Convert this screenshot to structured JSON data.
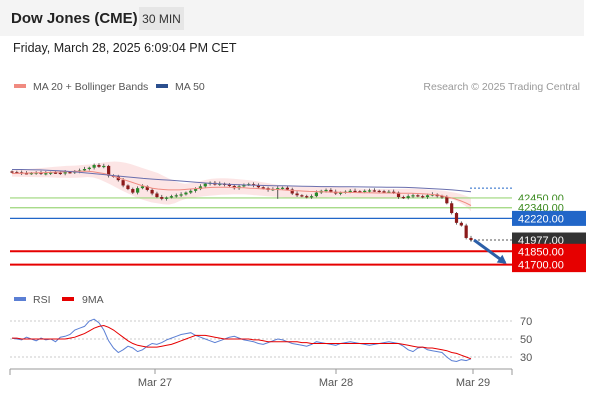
{
  "header": {
    "title": "Dow Jones (CME)",
    "timeframe": "30 MIN"
  },
  "datetime": "Friday, March 28, 2025 6:09:04 PM CET",
  "legend": {
    "bb_label": "MA 20 + Bollinger Bands",
    "ma50_label": "MA 50",
    "credit": "Research © 2025 Trading Central"
  },
  "rsi_legend": {
    "rsi_label": "RSI",
    "ma9_label": "9MA"
  },
  "colors": {
    "bull": "#2a8a2a",
    "bear": "#8b1a1a",
    "bb_fill": "#fbdcdc",
    "ma20": "#f08a80",
    "ma50": "#6a6fae",
    "support": "#e60000",
    "pivot": "#2166c8",
    "resistance": "#9cd67a",
    "last": "#333333",
    "rsi": "#5b7fd4",
    "rsi_ma": "#e60000"
  },
  "chart_data": [
    {
      "type": "candlestick",
      "title": "Dow Jones (CME)",
      "timeframe": "30 MIN",
      "x_labels": [
        "Mar 27",
        "Mar 28",
        "Mar 29"
      ],
      "ylim": [
        41600,
        42850
      ],
      "close_series": [
        42740,
        42738,
        42728,
        42725,
        42730,
        42735,
        42720,
        42728,
        42735,
        42732,
        42725,
        42740,
        42735,
        42748,
        42760,
        42775,
        42790,
        42820,
        42800,
        42810,
        42700,
        42690,
        42650,
        42590,
        42550,
        42510,
        42560,
        42580,
        42540,
        42500,
        42460,
        42440,
        42455,
        42470,
        42480,
        42490,
        42510,
        42530,
        42550,
        42580,
        42610,
        42620,
        42600,
        42610,
        42600,
        42585,
        42560,
        42580,
        42600,
        42605,
        42590,
        42570,
        42560,
        42540,
        42550,
        42560,
        42565,
        42545,
        42500,
        42480,
        42470,
        42460,
        42470,
        42510,
        42530,
        42540,
        42520,
        42500,
        42510,
        42520,
        42530,
        42525,
        42520,
        42530,
        42535,
        42530,
        42525,
        42520,
        42520,
        42510,
        42460,
        42450,
        42470,
        42480,
        42470,
        42460,
        42480,
        42490,
        42470,
        42460,
        42390,
        42280,
        42170,
        42140,
        42000,
        41977
      ],
      "ma20": [
        42725,
        42726,
        42728,
        42730,
        42732,
        42734,
        42735,
        42737,
        42740,
        42742,
        42745,
        42748,
        42750,
        42751,
        42750,
        42745,
        42735,
        42725,
        42710,
        42690,
        42670,
        42650,
        42630,
        42610,
        42590,
        42575,
        42560,
        42550,
        42545,
        42540,
        42540,
        42540,
        42545,
        42550,
        42555,
        42560,
        42565,
        42568,
        42570,
        42570,
        42570,
        42568,
        42566,
        42564,
        42560,
        42557,
        42554,
        42551,
        42548,
        42545,
        42541,
        42537,
        42533,
        42530,
        42527,
        42524,
        42522,
        42520,
        42518,
        42516,
        42515,
        42513,
        42512,
        42511,
        42510,
        42509,
        42508,
        42507,
        42506,
        42505,
        42505,
        42504,
        42503,
        42502,
        42502,
        42500,
        42497,
        42493,
        42488,
        42482,
        42470,
        42455,
        42440,
        42420,
        42395,
        42365
      ],
      "bb_upper": [
        42760,
        42765,
        42770,
        42775,
        42780,
        42785,
        42790,
        42795,
        42800,
        42805,
        42810,
        42812,
        42815,
        42820,
        42825,
        42830,
        42840,
        42850,
        42855,
        42860,
        42855,
        42845,
        42830,
        42810,
        42790,
        42770,
        42750,
        42730,
        42700,
        42670,
        42640,
        42620,
        42610,
        42615,
        42625,
        42640,
        42655,
        42665,
        42670,
        42672,
        42670,
        42665,
        42660,
        42655,
        42650,
        42640,
        42630,
        42620,
        42610,
        42600,
        42590,
        42585,
        42580,
        42578,
        42575,
        42575,
        42578,
        42580,
        42580,
        42578,
        42575,
        42570,
        42568,
        42565,
        42560,
        42555,
        42553,
        42550,
        42550,
        42550,
        42550,
        42550,
        42552,
        42555,
        42555,
        42555,
        42550,
        42545,
        42540,
        42535,
        42530,
        42520,
        42510,
        42495,
        42475,
        42450
      ],
      "bb_lower": [
        42690,
        42688,
        42686,
        42685,
        42684,
        42683,
        42682,
        42680,
        42678,
        42676,
        42675,
        42677,
        42680,
        42685,
        42680,
        42660,
        42630,
        42600,
        42565,
        42530,
        42500,
        42470,
        42440,
        42420,
        42400,
        42390,
        42380,
        42375,
        42390,
        42420,
        42440,
        42450,
        42460,
        42470,
        42475,
        42480,
        42485,
        42488,
        42490,
        42490,
        42490,
        42485,
        42480,
        42475,
        42470,
        42465,
        42460,
        42455,
        42450,
        42450,
        42450,
        42450,
        42450,
        42450,
        42455,
        42460,
        42465,
        42465,
        42460,
        42455,
        42450,
        42445,
        42440,
        42440,
        42440,
        42440,
        42440,
        42445,
        42450,
        42455,
        42460,
        42460,
        42455,
        42450,
        42445,
        42440,
        42430,
        42400,
        42360,
        42300
      ],
      "ma50": [
        42770,
        42770,
        42768,
        42765,
        42760,
        42755,
        42748,
        42740,
        42730,
        42720,
        42710,
        42700,
        42690,
        42680,
        42670,
        42662,
        42655,
        42648,
        42640,
        42632,
        42624,
        42616,
        42610,
        42605,
        42600,
        42596,
        42592,
        42590,
        42588,
        42586,
        42584,
        42582,
        42580,
        42578,
        42577,
        42576,
        42575,
        42574,
        42573,
        42572,
        42571,
        42570,
        42568,
        42565,
        42560,
        42554,
        42547,
        42540,
        42530,
        42520
      ],
      "levels": [
        {
          "label": "42450.00",
          "role": "resistance",
          "value": 42450
        },
        {
          "label": "42340.00",
          "role": "resistance",
          "value": 42340
        },
        {
          "label": "42220.00",
          "role": "pivot",
          "value": 42220
        },
        {
          "label": "41977.00",
          "role": "last",
          "value": 41977
        },
        {
          "label": "41850.00",
          "role": "support",
          "value": 41850
        },
        {
          "label": "41700.00",
          "role": "support",
          "value": 41700
        }
      ],
      "projection_arrow": {
        "from": 41977,
        "to": 41700,
        "direction": "down"
      }
    },
    {
      "type": "line",
      "title": "RSI",
      "y_ticks": [
        30,
        50,
        70
      ],
      "ylim": [
        20,
        80
      ],
      "series": [
        {
          "name": "RSI",
          "values": [
            51,
            50,
            49,
            52,
            50,
            48,
            51,
            49,
            50,
            47,
            52,
            53,
            55,
            60,
            62,
            64,
            70,
            72,
            68,
            60,
            48,
            40,
            35,
            38,
            42,
            40,
            36,
            38,
            42,
            45,
            44,
            46,
            49,
            51,
            53,
            55,
            56,
            57,
            54,
            52,
            50,
            48,
            46,
            48,
            50,
            52,
            53,
            51,
            49,
            48,
            47,
            45,
            44,
            46,
            48,
            50,
            49,
            47,
            45,
            44,
            43,
            42,
            44,
            47,
            46,
            45,
            44,
            43,
            45,
            46,
            47,
            46,
            45,
            44,
            43,
            44,
            45,
            46,
            47,
            46,
            45,
            42,
            38,
            36,
            40,
            41,
            38,
            37,
            36,
            35,
            30,
            26,
            25,
            27,
            26,
            28
          ]
        },
        {
          "name": "9MA",
          "values": [
            51,
            51,
            50,
            50,
            50,
            50,
            50,
            50,
            50,
            50,
            50,
            50,
            51,
            52,
            54,
            56,
            59,
            62,
            64,
            65,
            63,
            60,
            56,
            52,
            48,
            45,
            43,
            42,
            41,
            41,
            41,
            42,
            43,
            44,
            46,
            48,
            50,
            52,
            54,
            54,
            54,
            53,
            52,
            51,
            50,
            50,
            50,
            50,
            50,
            50,
            49,
            49,
            48,
            47,
            47,
            47,
            47,
            47,
            47,
            47,
            46,
            46,
            45,
            45,
            45,
            45,
            45,
            45,
            45,
            45,
            45,
            45,
            45,
            45,
            45,
            45,
            45,
            45,
            45,
            45,
            45,
            44,
            43,
            42,
            41,
            41,
            40,
            40,
            39,
            38,
            37,
            35,
            34,
            32,
            30,
            28
          ]
        }
      ]
    }
  ]
}
